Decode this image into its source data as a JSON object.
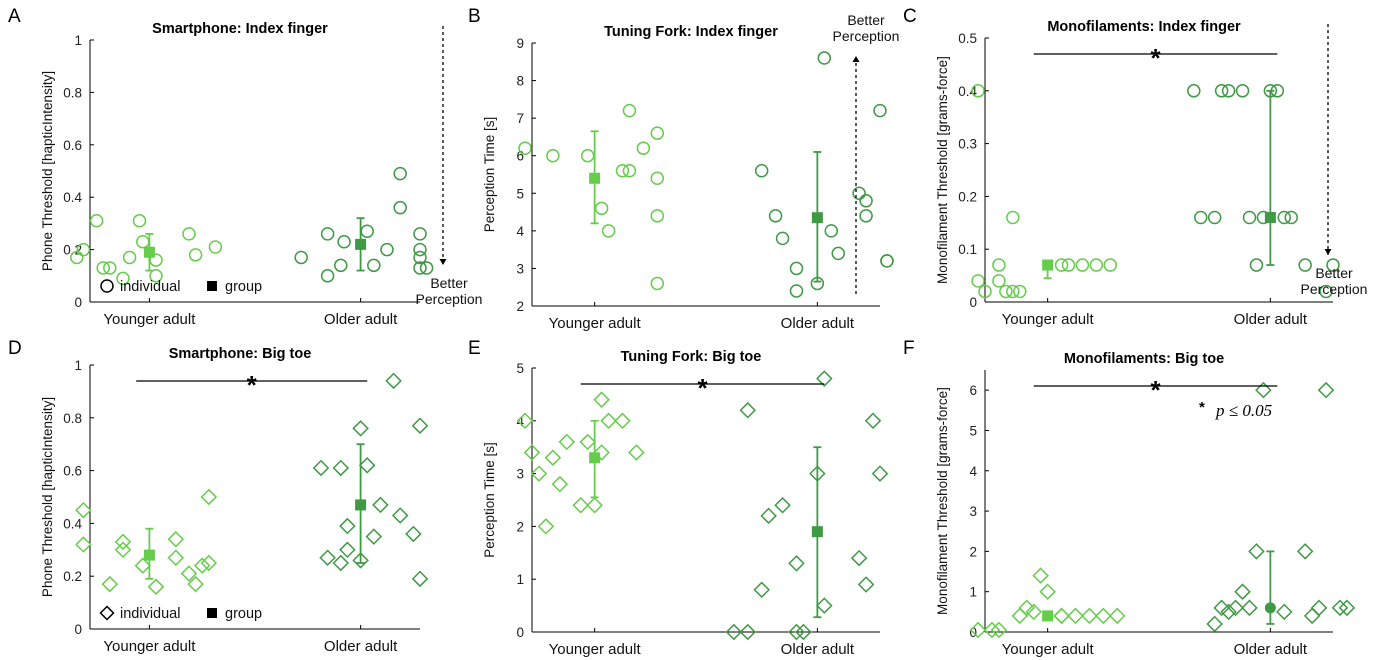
{
  "colors": {
    "younger": "#66cc4c",
    "older": "#3f9945",
    "axis": "#000000"
  },
  "categories": [
    "Younger adult",
    "Older adult"
  ],
  "legend": {
    "individual": "individual",
    "group": "group"
  },
  "arrow_text": [
    "Better",
    "Perception"
  ],
  "significance_star": "*",
  "p_star": "*",
  "p_text": "p ≤ 0.05",
  "chart_data": [
    {
      "panel": "A",
      "type": "scatter",
      "title": "Smartphone: Index finger",
      "ylabel": "Phone Threshold [hapticIntensity]",
      "ylim": [
        0,
        1
      ],
      "yticks": [
        0,
        0.2,
        0.4,
        0.6,
        0.8,
        1
      ],
      "marker": "circle",
      "legend": true,
      "significant": false,
      "arrow": "down",
      "series": [
        {
          "category": "Younger adult",
          "x": [
            -0.22,
            -0.2,
            -0.16,
            -0.14,
            -0.12,
            -0.08,
            -0.06,
            -0.03,
            -0.02,
            0.02,
            0.02,
            0.12,
            0.14,
            0.2
          ],
          "y": [
            0.17,
            0.2,
            0.31,
            0.13,
            0.13,
            0.09,
            0.17,
            0.31,
            0.23,
            0.1,
            0.16,
            0.26,
            0.18,
            0.21
          ],
          "mean": 0.19,
          "err_low": 0.12,
          "err_high": 0.26
        },
        {
          "category": "Older adult",
          "x": [
            -0.18,
            -0.1,
            -0.1,
            -0.06,
            -0.05,
            0.02,
            0.04,
            0.08,
            0.12,
            0.12,
            0.18,
            0.18,
            0.18,
            0.18,
            0.2
          ],
          "y": [
            0.17,
            0.1,
            0.26,
            0.14,
            0.23,
            0.27,
            0.14,
            0.2,
            0.49,
            0.36,
            0.26,
            0.2,
            0.13,
            0.17,
            0.13
          ],
          "mean": 0.22,
          "err_low": 0.12,
          "err_high": 0.32
        }
      ]
    },
    {
      "panel": "B",
      "type": "scatter",
      "title": "Tuning Fork: Index finger",
      "ylabel": "Perception Time [s]",
      "ylim": [
        2,
        9
      ],
      "yticks": [
        2,
        3,
        4,
        5,
        6,
        7,
        8,
        9
      ],
      "marker": "circle",
      "legend": false,
      "significant": false,
      "arrow": "up",
      "series": [
        {
          "category": "Younger adult",
          "x": [
            -0.2,
            -0.12,
            -0.02,
            0.02,
            0.04,
            0.08,
            0.1,
            0.1,
            0.14,
            0.18,
            0.18,
            0.18
          ],
          "y": [
            6.2,
            6.0,
            6.0,
            4.6,
            4.0,
            5.6,
            7.2,
            5.6,
            6.2,
            6.6,
            5.4,
            4.4
          ],
          "extra": {
            "x": [
              0.18
            ],
            "y": [
              2.6
            ]
          },
          "mean": 5.4,
          "err_low": 4.2,
          "err_high": 6.65
        },
        {
          "category": "Older adult",
          "x": [
            -0.16,
            -0.12,
            -0.1,
            -0.06,
            -0.06,
            0.0,
            0.02,
            0.04,
            0.06,
            0.12,
            0.14,
            0.14,
            0.18,
            0.2,
            0.2
          ],
          "y": [
            5.6,
            4.4,
            3.8,
            3.0,
            2.4,
            2.6,
            8.6,
            4.0,
            3.4,
            5.0,
            4.4,
            4.8,
            7.2,
            3.2,
            3.2
          ],
          "mean": 4.35,
          "err_low": 2.65,
          "err_high": 6.1
        }
      ]
    },
    {
      "panel": "C",
      "type": "scatter",
      "title": "Monofilaments: Index finger",
      "ylabel": "Monofilament Threshold [grams-force]",
      "ylim": [
        0,
        0.5
      ],
      "yticks": [
        0,
        0.1,
        0.2,
        0.3,
        0.4,
        0.5
      ],
      "marker": "circle",
      "legend": false,
      "significant": true,
      "arrow": "down",
      "series": [
        {
          "category": "Younger adult",
          "x": [
            -0.2,
            -0.2,
            -0.18,
            -0.14,
            -0.14,
            -0.12,
            -0.1,
            -0.1,
            -0.08,
            0.04,
            0.06,
            0.1,
            0.14,
            0.18
          ],
          "y": [
            0.4,
            0.04,
            0.02,
            0.07,
            0.04,
            0.02,
            0.02,
            0.16,
            0.02,
            0.07,
            0.07,
            0.07,
            0.07,
            0.07
          ],
          "mean": 0.07,
          "err_low": 0.045,
          "err_high": 0.07
        },
        {
          "category": "Older adult",
          "x": [
            -0.22,
            -0.2,
            -0.16,
            -0.14,
            -0.12,
            -0.08,
            -0.06,
            -0.04,
            -0.02,
            0.0,
            0.02,
            0.04,
            0.06,
            0.1,
            0.16,
            0.18
          ],
          "y": [
            0.4,
            0.16,
            0.16,
            0.4,
            0.4,
            0.4,
            0.16,
            0.07,
            0.16,
            0.4,
            0.4,
            0.16,
            0.16,
            0.07,
            0.02,
            0.07
          ],
          "mean": 0.16,
          "err_low": 0.07,
          "err_high": 0.4
        }
      ]
    },
    {
      "panel": "D",
      "type": "scatter",
      "title": "Smartphone: Big toe",
      "ylabel": "Phone Threshold [hapticIntensity]",
      "ylim": [
        0,
        1
      ],
      "yticks": [
        0,
        0.2,
        0.4,
        0.6,
        0.8,
        1
      ],
      "marker": "diamond",
      "legend": true,
      "significant": true,
      "arrow": "none",
      "series": [
        {
          "category": "Younger adult",
          "x": [
            -0.2,
            -0.2,
            -0.12,
            -0.08,
            -0.08,
            -0.02,
            0.02,
            0.08,
            0.08,
            0.12,
            0.14,
            0.16,
            0.18,
            0.18
          ],
          "y": [
            0.45,
            0.32,
            0.17,
            0.33,
            0.3,
            0.24,
            0.16,
            0.34,
            0.27,
            0.21,
            0.17,
            0.24,
            0.25,
            0.5
          ],
          "mean": 0.28,
          "err_low": 0.19,
          "err_high": 0.38
        },
        {
          "category": "Older adult",
          "x": [
            -0.12,
            -0.1,
            -0.06,
            -0.06,
            -0.04,
            -0.04,
            0.0,
            0.0,
            0.02,
            0.04,
            0.06,
            0.1,
            0.12,
            0.16,
            0.18
          ],
          "y": [
            0.61,
            0.27,
            0.25,
            0.61,
            0.3,
            0.39,
            0.76,
            0.26,
            0.62,
            0.35,
            0.47,
            0.94,
            0.43,
            0.36,
            0.77
          ],
          "extra": {
            "x": [
              0.18
            ],
            "y": [
              0.19
            ]
          },
          "mean": 0.47,
          "err_low": 0.25,
          "err_high": 0.7
        }
      ]
    },
    {
      "panel": "E",
      "type": "scatter",
      "title": "Tuning Fork: Big toe",
      "ylabel": "Perception Time [s]",
      "ylim": [
        0,
        5
      ],
      "yticks": [
        0,
        1,
        2,
        3,
        4,
        5
      ],
      "marker": "diamond",
      "legend": false,
      "significant": true,
      "arrow": "none",
      "series": [
        {
          "category": "Younger adult",
          "x": [
            -0.2,
            -0.18,
            -0.16,
            -0.14,
            -0.12,
            -0.1,
            -0.08,
            -0.04,
            0.0,
            0.02,
            0.02,
            0.04,
            0.08,
            0.12
          ],
          "y": [
            4.0,
            3.4,
            3.0,
            2.0,
            3.3,
            2.8,
            3.6,
            2.4,
            2.4,
            4.4,
            3.4,
            4.0,
            4.0,
            3.4
          ],
          "extra": {
            "x": [
              -0.02
            ],
            "y": [
              3.6
            ]
          },
          "mean": 3.3,
          "err_low": 2.55,
          "err_high": 4.0
        },
        {
          "category": "Older adult",
          "x": [
            -0.24,
            -0.2,
            -0.2,
            -0.16,
            -0.14,
            -0.1,
            -0.06,
            -0.06,
            -0.04,
            0.0,
            0.02,
            0.12,
            0.14,
            0.16
          ],
          "y": [
            0.0,
            0.0,
            4.2,
            0.8,
            2.2,
            2.4,
            1.3,
            0.0,
            0.0,
            3.0,
            4.8,
            1.4,
            0.9,
            4.0
          ],
          "extra": {
            "x": [
              0.18,
              0.02
            ],
            "y": [
              3.0,
              0.5
            ]
          },
          "mean": 1.9,
          "err_low": 0.28,
          "err_high": 3.5
        }
      ]
    },
    {
      "panel": "F",
      "type": "scatter",
      "title": "Monofilaments: Big toe",
      "ylabel": "Monofilament Threshold [grams-force]",
      "ylim": [
        0,
        6.5
      ],
      "yticks": [
        0,
        1,
        2,
        3,
        4,
        5,
        6
      ],
      "marker": "diamond",
      "legend": false,
      "significant": true,
      "arrow": "none",
      "pnote": true,
      "series": [
        {
          "category": "Younger adult",
          "x": [
            -0.2,
            -0.16,
            -0.14,
            -0.08,
            -0.06,
            -0.04,
            -0.02,
            0.0,
            0.04,
            0.04,
            0.08,
            0.12,
            0.16,
            0.2
          ],
          "y": [
            0.05,
            0.05,
            0.05,
            0.4,
            0.6,
            0.5,
            1.4,
            1.0,
            0.4,
            0.4,
            0.4,
            0.4,
            0.4,
            0.4
          ],
          "mean": 0.4,
          "err_low": 0.4,
          "err_high": 0.4
        },
        {
          "category": "Older adult",
          "x": [
            -0.16,
            -0.14,
            -0.12,
            -0.1,
            -0.08,
            -0.06,
            -0.04,
            -0.02,
            0.04,
            0.1,
            0.12,
            0.14,
            0.16,
            0.2,
            0.22
          ],
          "y": [
            0.2,
            0.6,
            0.5,
            0.6,
            1.0,
            0.6,
            2.0,
            6.0,
            0.5,
            2.0,
            0.4,
            0.6,
            6.0,
            0.6,
            0.6
          ],
          "mean": 0.6,
          "err_low": 0.2,
          "err_high": 2.0
        }
      ]
    }
  ]
}
